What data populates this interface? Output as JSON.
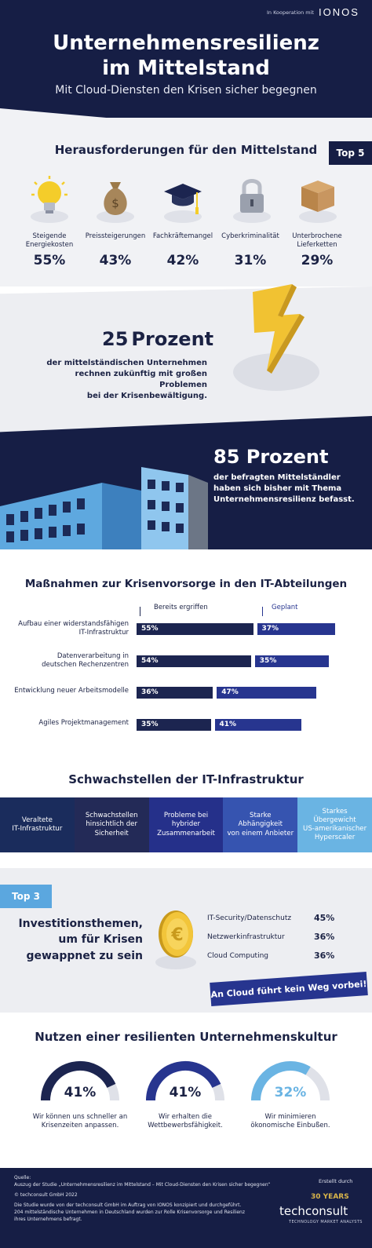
{
  "header": {
    "cooperation": "In Kooperation mit",
    "partner_logo": "IONOS",
    "title_line1": "Unternehmensresilienz",
    "title_line2": "im Mittelstand",
    "subtitle": "Mit Cloud-Diensten den Krisen sicher begegnen"
  },
  "challenges": {
    "heading": "Herausforderungen für den Mittelstand",
    "badge": "Top 5",
    "items": [
      {
        "label_line1": "Steigende",
        "label_line2": "Energiekosten",
        "value": "55%",
        "icon": "lightbulb-icon"
      },
      {
        "label_line1": "Preissteigerungen",
        "label_line2": "",
        "value": "43%",
        "icon": "money-bag-icon"
      },
      {
        "label_line1": "Fachkräftemangel",
        "label_line2": "",
        "value": "42%",
        "icon": "graduation-cap-icon"
      },
      {
        "label_line1": "Cyberkriminalität",
        "label_line2": "",
        "value": "31%",
        "icon": "padlock-icon"
      },
      {
        "label_line1": "Unterbrochene",
        "label_line2": "Lieferketten",
        "value": "29%",
        "icon": "box-icon"
      }
    ]
  },
  "stat25": {
    "big": "25",
    "big_word": "Prozent",
    "line1": "der mittelständischen Unternehmen",
    "line2": "rechnen zukünftig mit großen Problemen",
    "line3": "bei der Krisenbewältigung."
  },
  "stat85": {
    "big": "85 Prozent",
    "line1": "der befragten Mittelständler",
    "line2": "haben sich bisher mit Thema",
    "line3": "Unternehmensresilienz befasst."
  },
  "measures": {
    "heading": "Maßnahmen zur Krisenvorsorge in den IT-Abteilungen",
    "legend_done": "Bereits ergriffen",
    "legend_planned": "Geplant",
    "rows": [
      {
        "label_line1": "Aufbau einer widerstandsfähigen",
        "label_line2": "IT-Infrastruktur",
        "done_label": "55%",
        "planned_label": "37%"
      },
      {
        "label_line1": "Datenverarbeitung in",
        "label_line2": "deutschen Rechenzentren",
        "done_label": "54%",
        "planned_label": "35%"
      },
      {
        "label_line1": "Entwicklung neuer Arbeitsmodelle",
        "label_line2": "",
        "done_label": "36%",
        "planned_label": "47%"
      },
      {
        "label_line1": "Agiles Projektmanagement",
        "label_line2": "",
        "done_label": "35%",
        "planned_label": "41%"
      }
    ]
  },
  "weaknesses": {
    "heading": "Schwachstellen der IT-Infrastruktur",
    "items": [
      {
        "line1": "Veraltete",
        "line2": "IT-Infrastruktur",
        "line3": "",
        "color": "#1a2c5c"
      },
      {
        "line1": "Schwachstellen",
        "line2": "hinsichtlich der",
        "line3": "Sicherheit",
        "color": "#232a57"
      },
      {
        "line1": "Probleme bei",
        "line2": "hybrider",
        "line3": "Zusammenarbeit",
        "color": "#25308a"
      },
      {
        "line1": "Starke Abhängigkeit",
        "line2": "von einem Anbieter",
        "line3": "",
        "color": "#3654b0"
      },
      {
        "line1": "Starkes Übergewicht",
        "line2": "US-amerikanischer",
        "line3": "Hyperscaler",
        "color": "#6ab4e3"
      }
    ]
  },
  "invest": {
    "badge": "Top 3",
    "title_line1": "Investitionsthemen,",
    "title_line2": "um für Krisen",
    "title_line3": "gewappnet zu sein",
    "items": [
      {
        "label": "IT-Security/Datenschutz",
        "value": "45%"
      },
      {
        "label": "Netzwerkinfrastruktur",
        "value": "36%"
      },
      {
        "label": "Cloud Computing",
        "value": "36%"
      }
    ],
    "banner": "An Cloud führt kein Weg vorbei!"
  },
  "culture": {
    "heading": "Nutzen einer resilienten Unternehmenskultur",
    "items": [
      {
        "value": "41%",
        "line1": "Wir können uns schneller an",
        "line2": "Krisenzeiten anpassen.",
        "color": "#1c2550"
      },
      {
        "value": "41%",
        "line1": "Wir erhalten die",
        "line2": "Wettbewerbsfähigkeit.",
        "color": "#27358f"
      },
      {
        "value": "32%",
        "line1": "Wir minimieren",
        "line2": "ökonomische Einbußen.",
        "color": "#6ab4e3"
      }
    ]
  },
  "footer": {
    "source_label": "Quelle:",
    "source_text": "Auszug der Studie „Unternehmensresilienz im Mittelstand – Mit Cloud-Diensten den Krisen sicher begegnen“",
    "copyright": "© techconsult GmbH 2022",
    "note_line1": "Die Studie wurde von der techconsult GmbH im Auftrag von IONOS konzipiert und durchgeführt.",
    "note_line2": "204 mittelständische Unternehmen in Deutschland wurden zur Rolle Krisenvorsorge und Resilienz",
    "note_line3": "ihres Unternehmens befragt.",
    "created_by": "Erstellt durch",
    "logo_years": "30 YEARS",
    "logo_name": "techconsult",
    "logo_tagline": "TECHNOLOGY MARKET ANALYSTS"
  },
  "chart_data": {
    "type": "bar",
    "title": "Maßnahmen zur Krisenvorsorge in den IT-Abteilungen",
    "categories": [
      "Aufbau einer widerstandsfähigen IT-Infrastruktur",
      "Datenverarbeitung in deutschen Rechenzentren",
      "Entwicklung neuer Arbeitsmodelle",
      "Agiles Projektmanagement"
    ],
    "series": [
      {
        "name": "Bereits ergriffen",
        "values": [
          55,
          54,
          36,
          35
        ]
      },
      {
        "name": "Geplant",
        "values": [
          37,
          35,
          47,
          41
        ]
      }
    ],
    "orientation": "horizontal",
    "unit": "%"
  }
}
